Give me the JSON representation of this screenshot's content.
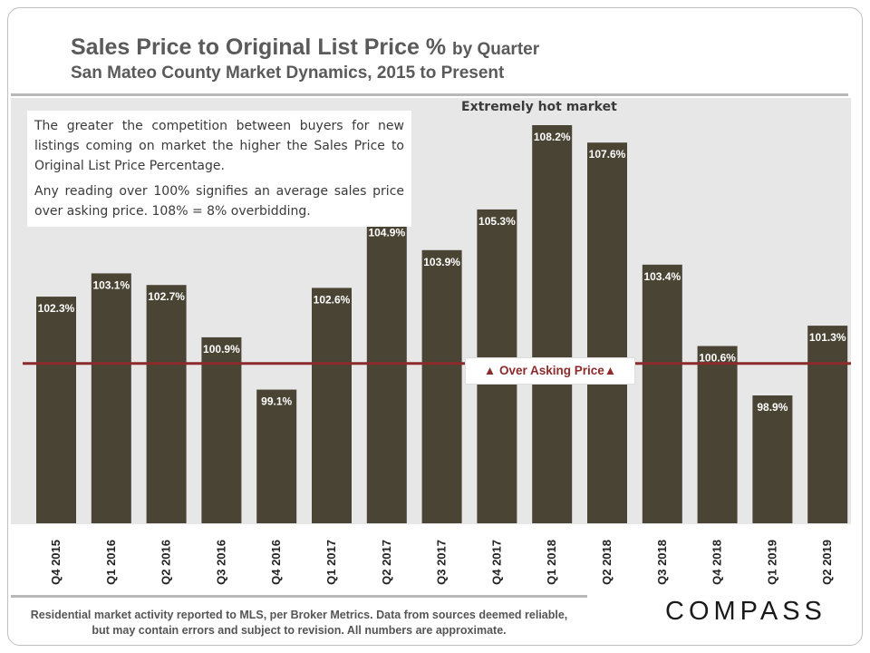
{
  "header": {
    "title": "Sales Price to Original List Price %",
    "title_suffix": "by Quarter",
    "subtitle": "San Mateo County Market Dynamics, 2015 to Present"
  },
  "annotations": {
    "note_p1": "The greater the competition between buyers for new listings coming on market the higher the Sales Price to Original List Price Percentage.",
    "note_p2": "Any reading over 100% signifies an average sales price over asking price. 108% = 8% overbidding.",
    "hot_market": "Extremely hot market",
    "over_asking": "▲ Over Asking Price▲"
  },
  "footer": {
    "disclaimer": "Residential market activity reported to MLS, per Broker Metrics. Data from sources deemed reliable, but may contain errors and subject to revision. All numbers are approximate.",
    "logo": "COMPASS"
  },
  "colors": {
    "bar": "#4a4434",
    "reference_line": "#8b2b2b",
    "plot_bg": "#e7e7e7"
  },
  "chart_data": {
    "type": "bar",
    "categories": [
      "Q4 2015",
      "Q1 2016",
      "Q2 2016",
      "Q3 2016",
      "Q4 2016",
      "Q1 2017",
      "Q2 2017",
      "Q3 2017",
      "Q4 2017",
      "Q1 2018",
      "Q2 2018",
      "Q3 2018",
      "Q4 2018",
      "Q1 2019",
      "Q2 2019"
    ],
    "values": [
      102.3,
      103.1,
      102.7,
      100.9,
      99.1,
      102.6,
      104.9,
      103.9,
      105.3,
      108.2,
      107.6,
      103.4,
      100.6,
      98.9,
      101.3
    ],
    "data_labels": [
      "102.3%",
      "103.1%",
      "102.7%",
      "100.9%",
      "99.1%",
      "102.6%",
      "104.9%",
      "103.9%",
      "105.3%",
      "108.2%",
      "107.6%",
      "103.4%",
      "100.6%",
      "98.9%",
      "101.3%"
    ],
    "reference_line": 100,
    "ylim": [
      94.5,
      108.2
    ],
    "grid": false
  }
}
